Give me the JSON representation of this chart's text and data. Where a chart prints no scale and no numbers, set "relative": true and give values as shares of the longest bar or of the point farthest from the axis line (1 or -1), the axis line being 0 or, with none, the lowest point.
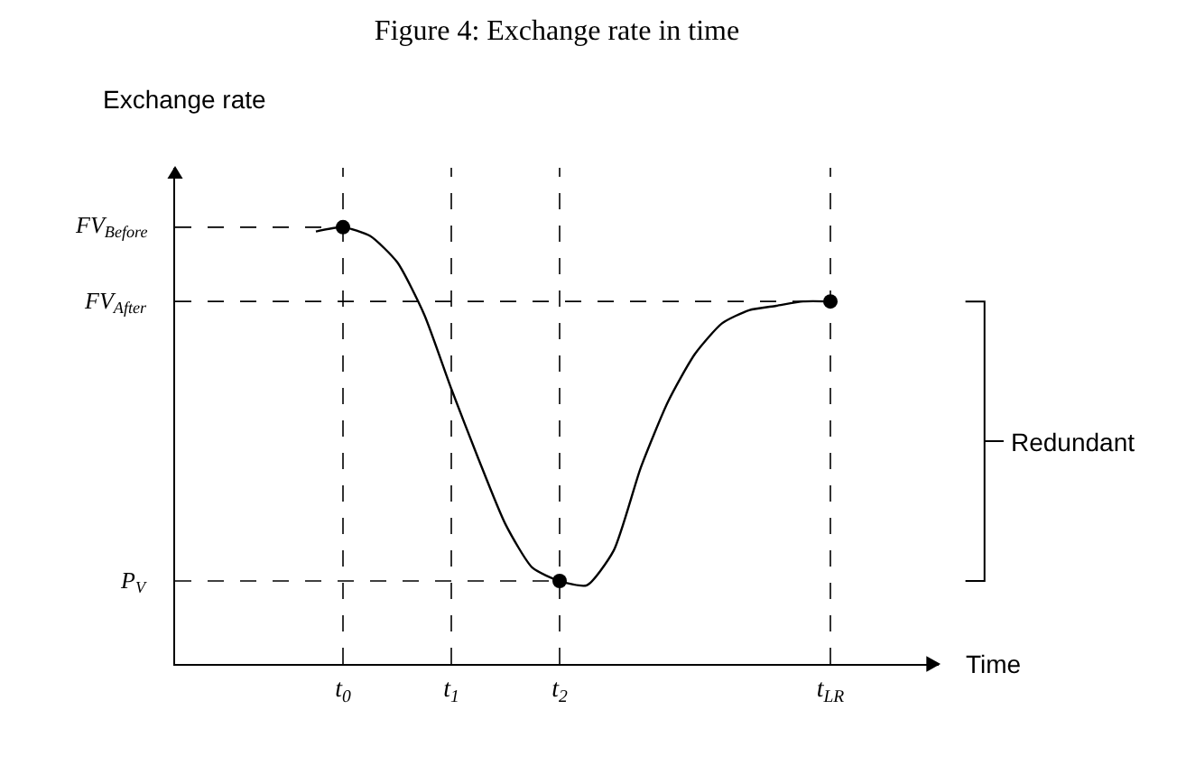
{
  "chart_data": {
    "type": "line",
    "title": "Figure 4: Exchange rate in time",
    "xlabel": "Time",
    "ylabel": "Exchange rate",
    "relative": true,
    "categories": [
      null,
      null,
      null,
      null,
      null,
      null,
      "t$_{0}$",
      null,
      null,
      null,
      "t$_{1}$",
      null,
      null,
      null,
      "t$_{2}$",
      null,
      null,
      null,
      null,
      null,
      null,
      null,
      null,
      null,
      "t$_{LR}$",
      null,
      null,
      null,
      null
    ],
    "series": [
      {
        "color": "#000000",
        "values": [
          null,
          null,
          null,
          null,
          null,
          0.99,
          1.0,
          0.98,
          0.92,
          0.8,
          0.63,
          0.47,
          0.32,
          0.22,
          0.19,
          0.18,
          0.26,
          0.45,
          0.6,
          0.71,
          0.78,
          0.81,
          0.82,
          0.83,
          0.83,
          null,
          null,
          null,
          null
        ]
      },
      {
        "type": "scatter",
        "color": "#000000",
        "marker": "circle",
        "x": [
          "t$_{0}$",
          "t$_{2}$",
          "t$_{LR}$"
        ],
        "values": [
          1.0,
          0.19,
          0.83
        ]
      }
    ],
    "ref_lines": [
      {
        "axis": "y",
        "value": 1.0,
        "label": "FV$_{Before}$",
        "line_style": "dashed",
        "color": "#000000"
      },
      {
        "axis": "y",
        "value": 0.83,
        "label": "FV$_{After}$",
        "line_style": "dashed",
        "color": "#000000"
      },
      {
        "axis": "y",
        "value": 0.19,
        "label": "P$_{V}$",
        "line_style": "dashed",
        "color": "#000000"
      },
      {
        "axis": "x",
        "value": "t$_{0}$",
        "line_style": "dashed",
        "color": "#000000"
      },
      {
        "axis": "x",
        "value": "t$_{1}$",
        "line_style": "dashed",
        "color": "#000000"
      },
      {
        "axis": "x",
        "value": "t$_{2}$",
        "line_style": "dashed",
        "color": "#000000"
      },
      {
        "axis": "x",
        "value": "t$_{LR}$",
        "line_style": "dashed",
        "color": "#000000"
      }
    ],
    "annotations": [
      "Redundant"
    ],
    "grid": false
  }
}
